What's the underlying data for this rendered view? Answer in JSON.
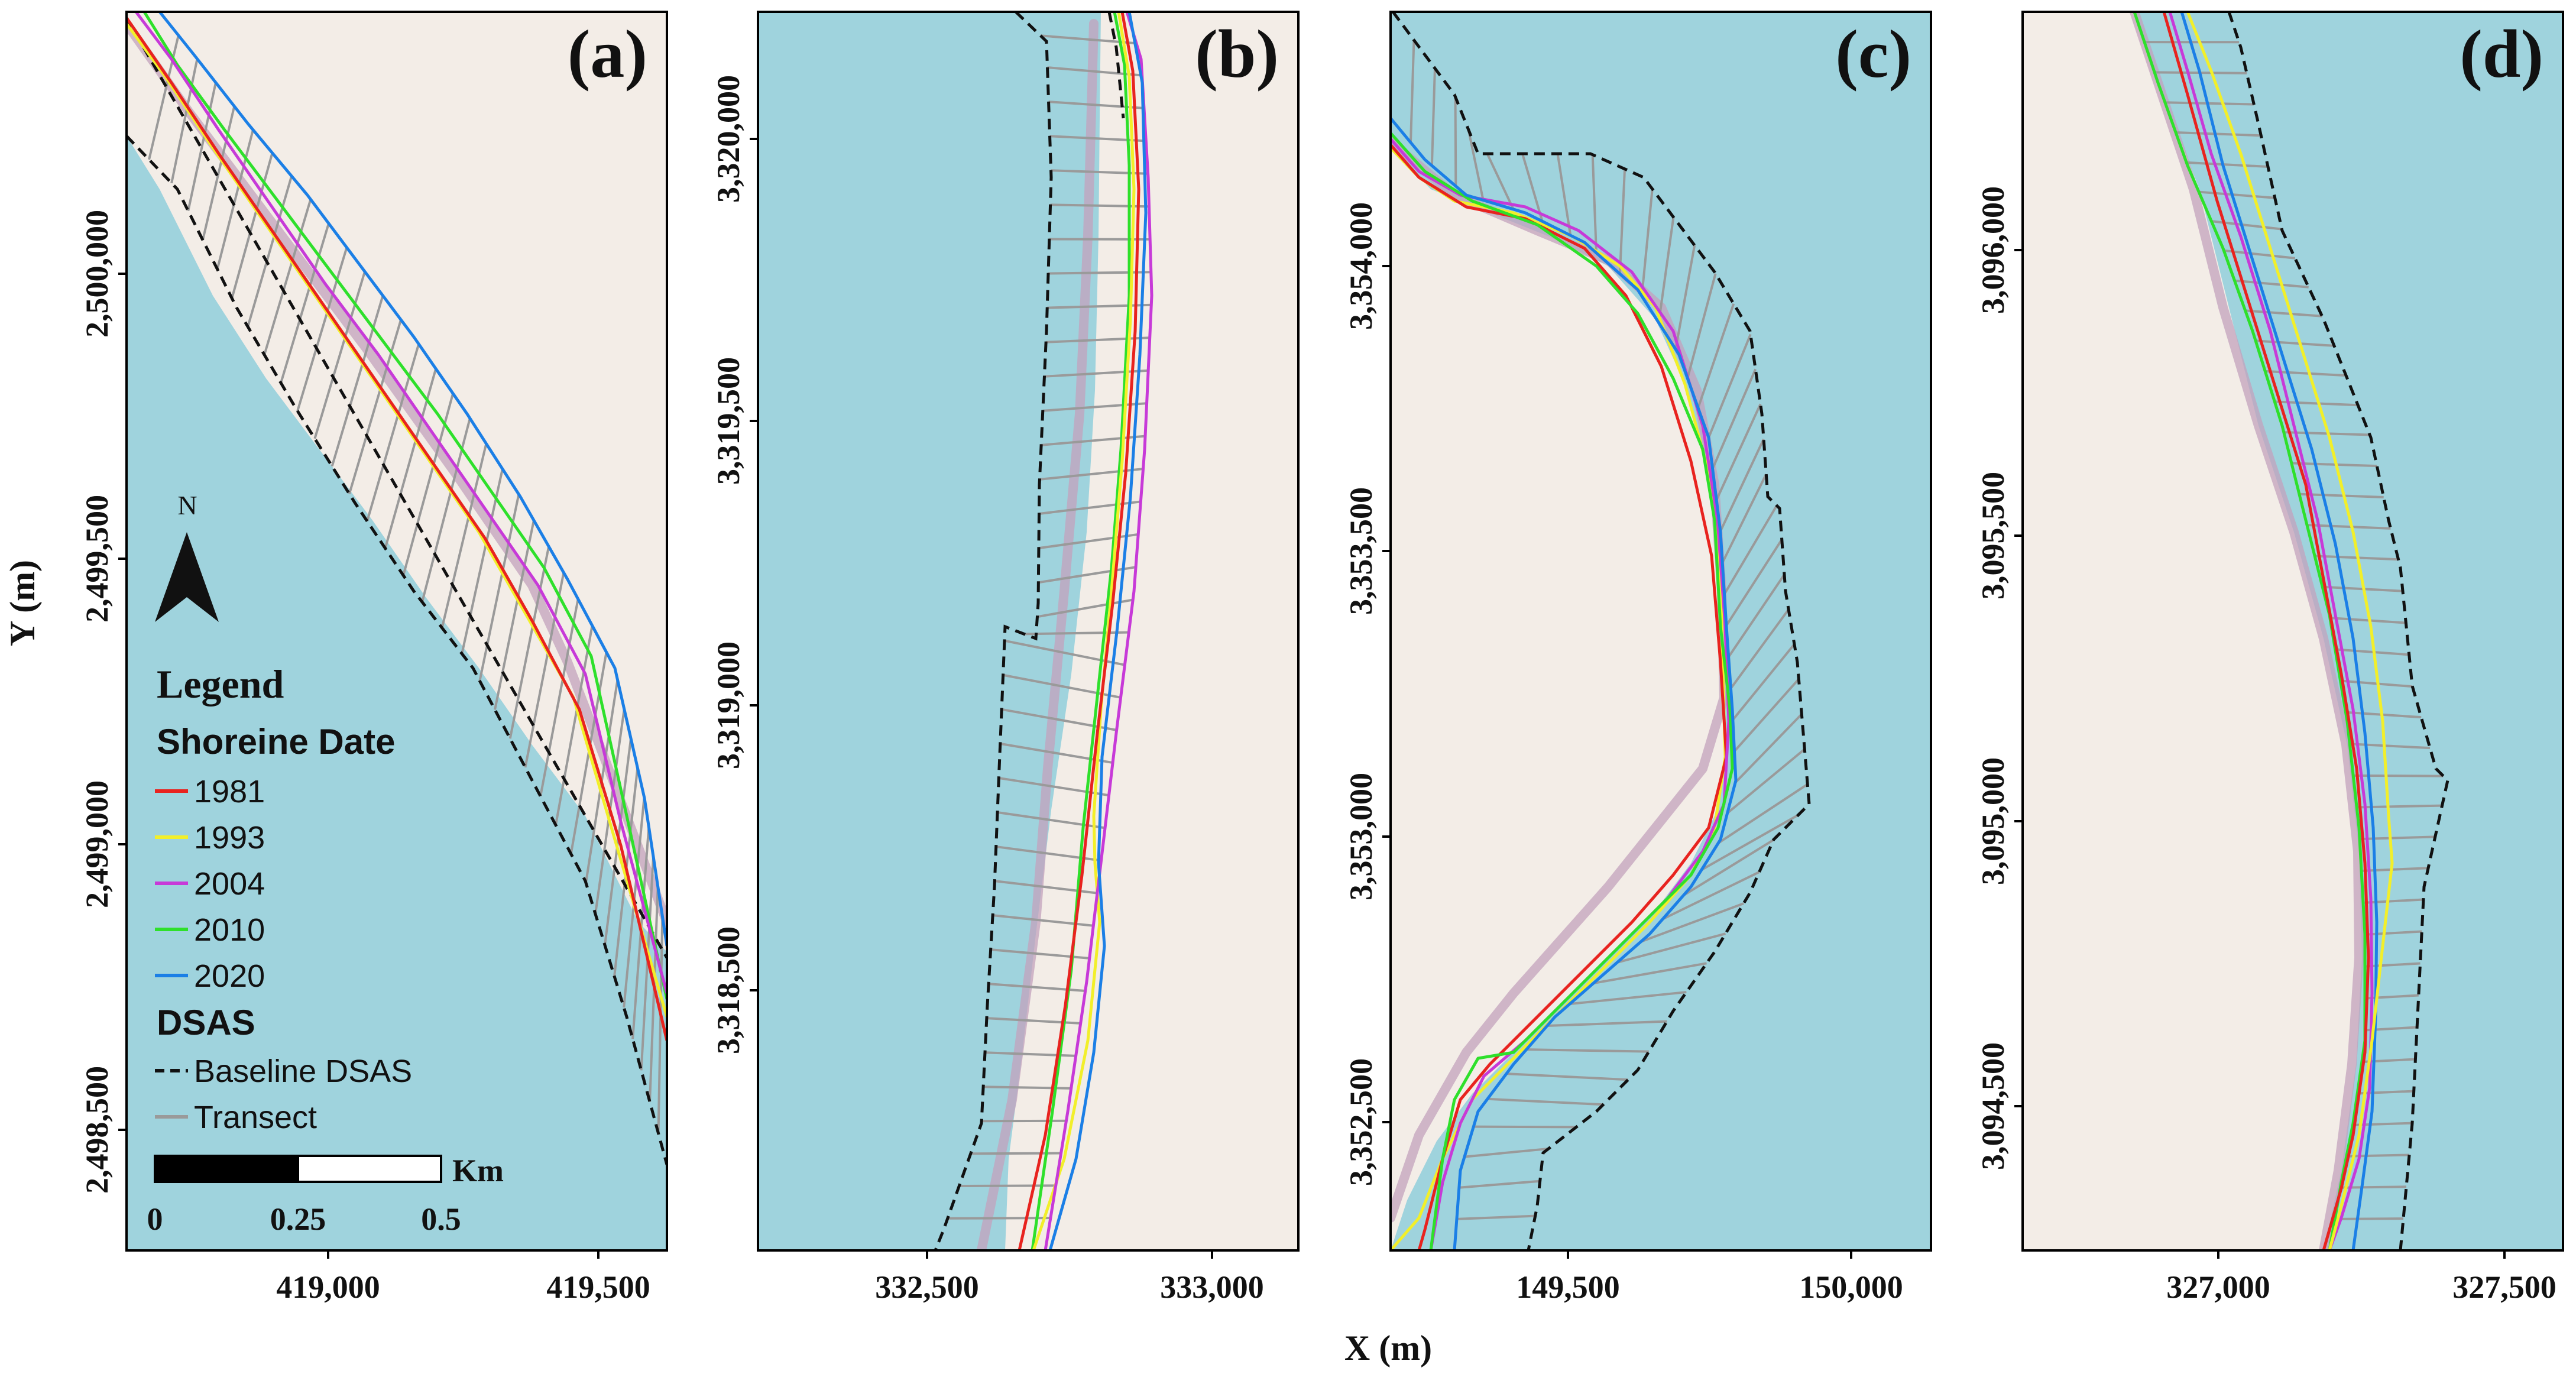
{
  "colors": {
    "water": "#9fd3dd",
    "land": "#f3ede7",
    "baseline": "#111111",
    "transect": "#9a9a9a",
    "ghost": "#c3a2bc"
  },
  "axes": {
    "x_title": "X (m)",
    "y_title": "Y (m)"
  },
  "panels": [
    {
      "tag": "(a)",
      "x_ticks": [
        "419,000",
        "419,500"
      ],
      "y_ticks": [
        "2,500,000",
        "2,499,500",
        "2,499,000",
        "2,498,500"
      ]
    },
    {
      "tag": "(b)",
      "x_ticks": [
        "332,500",
        "333,000"
      ],
      "y_ticks": [
        "3,320,000",
        "3,319,500",
        "3,319,000",
        "3,318,500"
      ]
    },
    {
      "tag": "(c)",
      "x_ticks": [
        "149,500",
        "150,000"
      ],
      "y_ticks": [
        "3,354,000",
        "3,353,500",
        "3,353,000",
        "3,352,500"
      ]
    },
    {
      "tag": "(d)",
      "x_ticks": [
        "327,000",
        "327,500"
      ],
      "y_ticks": [
        "3,096,000",
        "3,095,500",
        "3,095,000",
        "3,094,500"
      ]
    }
  ],
  "legend": {
    "title": "Legend",
    "shoreline_heading": "Shoreine Date",
    "shorelines": [
      {
        "label": "1981",
        "color": "#e8231f"
      },
      {
        "label": "1993",
        "color": "#f2ef2a"
      },
      {
        "label": "2004",
        "color": "#c73ad8"
      },
      {
        "label": "2010",
        "color": "#2ee02b"
      },
      {
        "label": "2020",
        "color": "#1b7fe6"
      }
    ],
    "dsas_heading": "DSAS",
    "dsas_items": [
      {
        "label": "Baseline DSAS",
        "style": "dashed",
        "color": "#111111"
      },
      {
        "label": "Transect",
        "style": "solid",
        "color": "#9a9a9a"
      }
    ]
  },
  "north_arrow": {
    "label": "N"
  },
  "scale_bar": {
    "labels": [
      "0",
      "0.25",
      "0.5"
    ],
    "unit": "Km"
  }
}
